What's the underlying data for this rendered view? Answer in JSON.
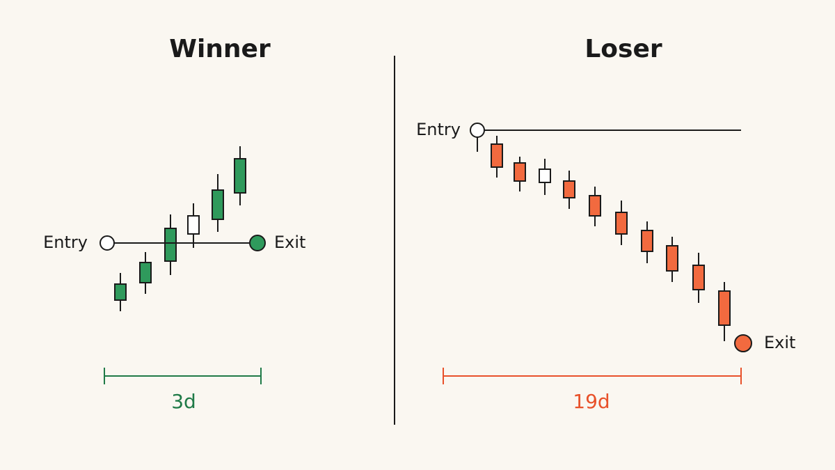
{
  "panels": [
    {
      "title": "Winner",
      "entry": "Entry",
      "exit": "Exit",
      "duration": "3d"
    },
    {
      "title": "Loser",
      "entry": "Entry",
      "exit": "Exit",
      "duration": "19d"
    }
  ]
}
